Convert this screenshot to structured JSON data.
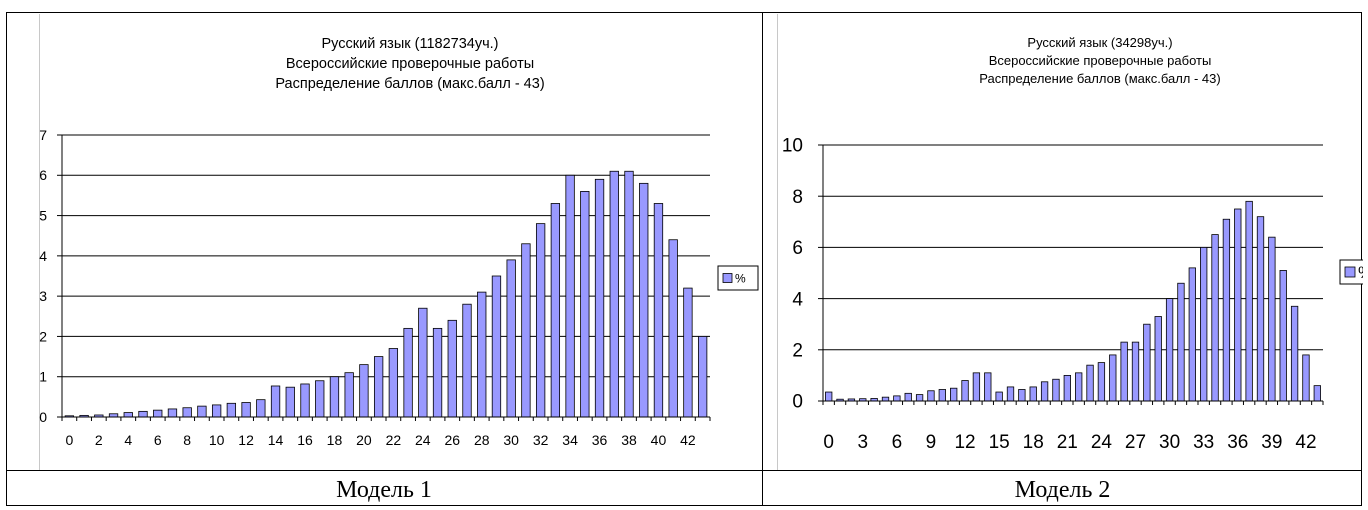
{
  "captions": [
    "Модель 1",
    "Модель 2"
  ],
  "chart_data": [
    {
      "type": "bar",
      "title_lines": [
        "Русский язык (1182734уч.)",
        "Всероссийские проверочные работы",
        "Распределение баллов (макс.балл - 43)"
      ],
      "categories": [
        "0",
        "1",
        "2",
        "3",
        "4",
        "5",
        "6",
        "7",
        "8",
        "9",
        "10",
        "11",
        "12",
        "13",
        "14",
        "15",
        "16",
        "17",
        "18",
        "19",
        "20",
        "21",
        "22",
        "23",
        "24",
        "25",
        "26",
        "27",
        "28",
        "29",
        "30",
        "31",
        "32",
        "33",
        "34",
        "35",
        "36",
        "37",
        "38",
        "39",
        "40",
        "41",
        "42",
        "43"
      ],
      "x_tick_labels": [
        "0",
        "2",
        "4",
        "6",
        "8",
        "10",
        "12",
        "14",
        "16",
        "18",
        "20",
        "22",
        "24",
        "26",
        "28",
        "30",
        "32",
        "34",
        "36",
        "38",
        "40",
        "42"
      ],
      "series": [
        {
          "name": "%",
          "values": [
            0.03,
            0.04,
            0.05,
            0.08,
            0.11,
            0.14,
            0.17,
            0.2,
            0.23,
            0.27,
            0.3,
            0.34,
            0.36,
            0.43,
            0.77,
            0.74,
            0.82,
            0.9,
            1.0,
            1.1,
            1.3,
            1.5,
            1.7,
            2.2,
            2.7,
            2.2,
            2.4,
            2.8,
            3.1,
            3.5,
            3.9,
            4.3,
            4.8,
            5.3,
            6.0,
            5.6,
            5.9,
            6.1,
            6.1,
            5.8,
            5.3,
            4.4,
            3.2,
            2.0
          ]
        }
      ],
      "ylim": [
        0,
        7
      ],
      "y_ticks": [
        0,
        1,
        2,
        3,
        4,
        5,
        6,
        7
      ],
      "grid": true,
      "legend": "right",
      "bar_color": "#9999ff"
    },
    {
      "type": "bar",
      "title_lines": [
        "Русский язык (34298уч.)",
        "Всероссийские проверочные работы",
        "Распределение баллов (макс.балл - 43)"
      ],
      "categories": [
        "0",
        "1",
        "2",
        "3",
        "4",
        "5",
        "6",
        "7",
        "8",
        "9",
        "10",
        "11",
        "12",
        "13",
        "14",
        "15",
        "16",
        "17",
        "18",
        "19",
        "20",
        "21",
        "22",
        "23",
        "24",
        "25",
        "26",
        "27",
        "28",
        "29",
        "30",
        "31",
        "32",
        "33",
        "34",
        "35",
        "36",
        "37",
        "38",
        "39",
        "40",
        "41",
        "42",
        "43"
      ],
      "x_tick_labels": [
        "0",
        "3",
        "6",
        "9",
        "12",
        "15",
        "18",
        "21",
        "24",
        "27",
        "30",
        "33",
        "36",
        "39",
        "42"
      ],
      "series": [
        {
          "name": "%",
          "values": [
            0.35,
            0.07,
            0.08,
            0.09,
            0.1,
            0.15,
            0.2,
            0.3,
            0.25,
            0.4,
            0.45,
            0.5,
            0.8,
            1.1,
            1.1,
            0.35,
            0.55,
            0.45,
            0.55,
            0.75,
            0.85,
            1.0,
            1.1,
            1.4,
            1.5,
            1.8,
            2.3,
            2.3,
            3.0,
            3.3,
            4.0,
            4.6,
            5.2,
            6.0,
            6.5,
            7.1,
            7.5,
            7.8,
            7.2,
            6.4,
            5.1,
            3.7,
            1.8,
            0.6
          ]
        }
      ],
      "ylim": [
        0,
        10
      ],
      "y_ticks": [
        0,
        2,
        4,
        6,
        8,
        10
      ],
      "grid": true,
      "legend": "right",
      "bar_color": "#9999ff"
    }
  ]
}
